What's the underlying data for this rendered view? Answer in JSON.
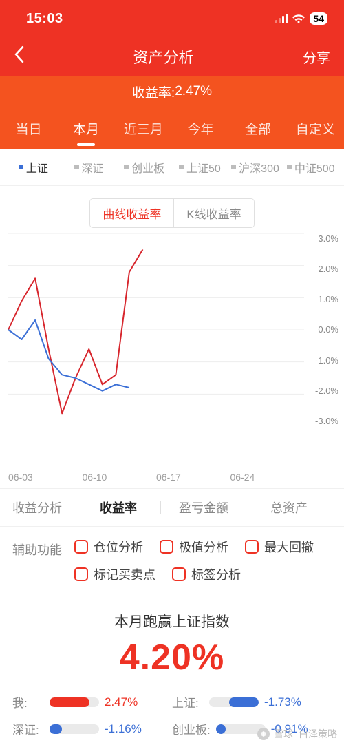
{
  "status_bar": {
    "time": "15:03",
    "battery": "54"
  },
  "nav": {
    "title": "资产分析",
    "share": "分享"
  },
  "yield_line": {
    "label": "收益率:",
    "value": "2.47%"
  },
  "period_tabs": [
    "当日",
    "本月",
    "近三月",
    "今年",
    "全部",
    "自定义"
  ],
  "period_active_index": 1,
  "index_tabs": [
    "上证",
    "深证",
    "创业板",
    "上证50",
    "沪深300",
    "中证500"
  ],
  "index_active_index": 0,
  "chart_type_tabs": [
    "曲线收益率",
    "K线收益率"
  ],
  "chart_type_active_index": 0,
  "chart": {
    "type": "line",
    "ylim": [
      -3.0,
      3.0
    ],
    "ytick_step": 1.0,
    "y_ticks": [
      "3.0%",
      "2.0%",
      "1.0%",
      "0.0%",
      "-1.0%",
      "-2.0%",
      "-3.0%"
    ],
    "x_labels": [
      "06-03",
      "06-10",
      "06-17",
      "06-24"
    ],
    "grid_color": "#ededed",
    "background_color": "#ffffff",
    "series": [
      {
        "name": "我",
        "color": "#d7262d",
        "line_width": 2,
        "x": [
          0,
          1,
          2,
          3,
          4,
          5,
          6,
          7,
          8,
          9,
          10
        ],
        "y": [
          0.0,
          0.9,
          1.6,
          -0.6,
          -2.6,
          -1.5,
          -0.6,
          -1.7,
          -1.4,
          1.8,
          2.5
        ]
      },
      {
        "name": "上证",
        "color": "#3b6fd6",
        "line_width": 2,
        "x": [
          0,
          1,
          2,
          3,
          4,
          5,
          6,
          7,
          8,
          9
        ],
        "y": [
          0.0,
          -0.3,
          0.3,
          -0.9,
          -1.4,
          -1.5,
          -1.7,
          -1.9,
          -1.7,
          -1.8
        ]
      }
    ],
    "x_domain": [
      0,
      22
    ]
  },
  "analysis": {
    "label": "收益分析",
    "tabs": [
      "收益率",
      "盈亏金额",
      "总资产"
    ],
    "active_index": 0
  },
  "aux": {
    "label": "辅助功能",
    "options": [
      "仓位分析",
      "极值分析",
      "最大回撤",
      "标记买卖点",
      "标签分析"
    ],
    "checkbox_border_color": "#ee3224"
  },
  "summary": {
    "title": "本月跑赢上证指数",
    "value": "4.20%",
    "value_color": "#ee3224"
  },
  "comparison": [
    {
      "name": "我:",
      "value": "2.47%",
      "color": "#ee3224",
      "text_color": "#ee3224",
      "fill_pct": 80,
      "align": "left"
    },
    {
      "name": "上证:",
      "value": "-1.73%",
      "color": "#3b6fd6",
      "text_color": "#3b6fd6",
      "fill_pct": 60,
      "align": "right"
    },
    {
      "name": "深证:",
      "value": "-1.16%",
      "color": "#3b6fd6",
      "text_color": "#3b6fd6",
      "fill_pct": 25,
      "align": "left"
    },
    {
      "name": "创业板:",
      "value": "-0.91%",
      "color": "#3b6fd6",
      "text_color": "#3b6fd6",
      "fill_pct": 20,
      "align": "left"
    }
  ],
  "watermark": {
    "brand": "雪球",
    "author": "白泽策略"
  },
  "colors": {
    "header_bg": "#ee3224",
    "subheader_bg": "#f4531f",
    "pos": "#ee3224",
    "neg": "#3b6fd6"
  }
}
